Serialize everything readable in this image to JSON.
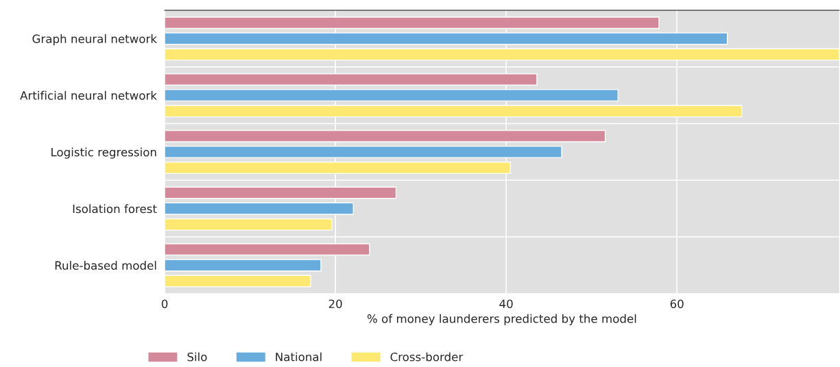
{
  "chart_data": {
    "type": "bar",
    "orientation": "horizontal",
    "xlabel": "% of money launderers predicted by the model",
    "categories": [
      "Graph neural network",
      "Artificial neural network",
      "Logistic regression",
      "Isolation forest",
      "Rule-based model"
    ],
    "series": [
      {
        "name": "Silo",
        "color": "#d4899a",
        "values": [
          57.9,
          43.6,
          51.6,
          27.1,
          24.0
        ]
      },
      {
        "name": "National",
        "color": "#67acdc",
        "values": [
          65.9,
          53.1,
          46.5,
          22.1,
          18.3
        ]
      },
      {
        "name": "Cross-border",
        "color": "#fde872",
        "values": [
          79,
          67.6,
          40.5,
          19.6,
          17.1
        ]
      }
    ],
    "xlim": [
      0,
      79
    ],
    "xticks": [
      0,
      20,
      40,
      60
    ],
    "grid": "x",
    "legend": "bottom"
  }
}
